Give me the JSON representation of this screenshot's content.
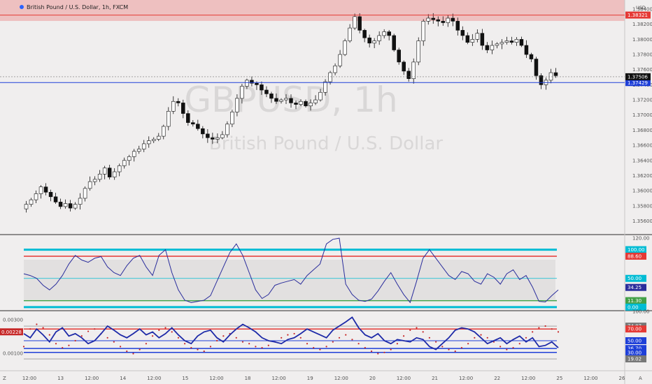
{
  "chart_data": {
    "type": "candlestick",
    "title": "British Pound / U.S. Dollar, 1h, FXCM",
    "watermark_symbol": "GBPUSD, 1h",
    "watermark_name": "British Pound / U.S. Dollar",
    "currency": "USD",
    "price_axis": {
      "ylim": [
        1.3542,
        1.3852
      ],
      "ticks": [
        "1.38400",
        "1.38200",
        "1.38000",
        "1.37800",
        "1.37600",
        "1.37400",
        "1.37200",
        "1.37000",
        "1.36800",
        "1.36600",
        "1.36400",
        "1.36200",
        "1.36000",
        "1.35800",
        "1.35600"
      ]
    },
    "closes": [
      1.3582,
      1.3588,
      1.3596,
      1.3605,
      1.3598,
      1.3592,
      1.3585,
      1.3579,
      1.3583,
      1.3577,
      1.3582,
      1.359,
      1.3603,
      1.3612,
      1.3615,
      1.3622,
      1.363,
      1.3618,
      1.3625,
      1.3633,
      1.364,
      1.3645,
      1.3652,
      1.3655,
      1.3662,
      1.3666,
      1.3668,
      1.3672,
      1.3685,
      1.3705,
      1.3718,
      1.3716,
      1.3702,
      1.369,
      1.3688,
      1.3682,
      1.3675,
      1.367,
      1.3668,
      1.367,
      1.3674,
      1.3688,
      1.3704,
      1.3722,
      1.3738,
      1.3746,
      1.3742,
      1.374,
      1.3733,
      1.3728,
      1.3722,
      1.3718,
      1.372,
      1.3722,
      1.3716,
      1.3714,
      1.3718,
      1.3712,
      1.3716,
      1.372,
      1.373,
      1.3744,
      1.3756,
      1.3765,
      1.378,
      1.3798,
      1.3815,
      1.383,
      1.3812,
      1.3802,
      1.3795,
      1.3798,
      1.3805,
      1.381,
      1.3805,
      1.3786,
      1.377,
      1.3758,
      1.3748,
      1.377,
      1.3798,
      1.3824,
      1.3828,
      1.3826,
      1.3824,
      1.3822,
      1.3828,
      1.3824,
      1.3812,
      1.3805,
      1.3796,
      1.38,
      1.3808,
      1.3792,
      1.3786,
      1.3792,
      1.3794,
      1.3796,
      1.3798,
      1.3796,
      1.38,
      1.3792,
      1.378,
      1.3774,
      1.3752,
      1.374,
      1.3746,
      1.3756,
      1.3752
    ],
    "last_price": "1.37506",
    "price_levels": [
      {
        "label": "1.38321",
        "value": 1.38321,
        "color": "#e53935"
      },
      {
        "label": "1.37429",
        "value": 1.37429,
        "color": "#1e3fd8"
      }
    ],
    "resistance_zone": [
      1.3835,
      1.3852
    ],
    "oscillator_1": {
      "ylim": [
        -5,
        125
      ],
      "ticks": [
        "120.00"
      ],
      "levels": [
        {
          "label": "100.00",
          "value": 100,
          "color": "#00bcd4"
        },
        {
          "label": "88.60",
          "value": 88.6,
          "color": "#e53935"
        },
        {
          "label": "50.00",
          "value": 50,
          "color": "#00bcd4"
        },
        {
          "label": "11.30",
          "value": 11.3,
          "color": "#43a047"
        },
        {
          "label": "0.00",
          "value": 0,
          "color": "#00bcd4"
        }
      ],
      "current": {
        "label": "34.25",
        "value": 34.25
      },
      "values": [
        58,
        55,
        50,
        38,
        30,
        40,
        55,
        75,
        90,
        82,
        78,
        85,
        88,
        70,
        60,
        55,
        72,
        85,
        90,
        70,
        55,
        90,
        100,
        60,
        30,
        12,
        8,
        10,
        12,
        20,
        45,
        70,
        95,
        110,
        90,
        60,
        30,
        15,
        22,
        38,
        42,
        45,
        48,
        40,
        55,
        65,
        75,
        110,
        118,
        120,
        40,
        22,
        12,
        10,
        14,
        28,
        45,
        60,
        40,
        22,
        8,
        45,
        85,
        100,
        85,
        70,
        55,
        48,
        62,
        58,
        45,
        40,
        58,
        52,
        40,
        58,
        65,
        48,
        55,
        35,
        10,
        9,
        20,
        30
      ]
    },
    "oscillator_2": {
      "ylim": [
        0.0,
        0.0035
      ],
      "ticks": [
        "0.00300",
        "0.00100"
      ],
      "current_left": "0.00228",
      "levels": [
        {
          "label": "74.87",
          "value": 74.87,
          "color": "#777777"
        },
        {
          "label": "70.00",
          "value": 70,
          "color": "#e53935"
        },
        {
          "label": "50.00",
          "value": 50,
          "color": "#1e3fd8"
        },
        {
          "label": "36.70",
          "value": 36.7,
          "color": "#1e3fd8"
        },
        {
          "label": "30.00",
          "value": 30,
          "color": "#1e3fd8"
        },
        {
          "label": "19.02",
          "value": 19.02,
          "color": "#777777"
        }
      ],
      "right_ticks": [
        "100.00"
      ],
      "line_values": [
        62,
        55,
        70,
        60,
        48,
        65,
        72,
        58,
        62,
        55,
        45,
        50,
        62,
        75,
        68,
        60,
        55,
        62,
        70,
        60,
        65,
        55,
        62,
        72,
        60,
        50,
        45,
        58,
        65,
        68,
        55,
        48,
        60,
        70,
        78,
        72,
        65,
        55,
        50,
        48,
        45,
        52,
        55,
        62,
        70,
        65,
        60,
        55,
        68,
        75,
        82,
        90,
        72,
        60,
        55,
        62,
        50,
        45,
        52,
        50,
        48,
        55,
        52,
        40,
        35,
        45,
        55,
        68,
        72,
        70,
        65,
        55,
        45,
        50,
        55,
        45,
        52,
        58,
        48,
        55,
        40,
        42,
        48,
        38
      ],
      "dot_values": [
        40,
        70,
        78,
        72,
        60,
        45,
        38,
        42,
        50,
        58,
        66,
        70,
        62,
        55,
        48,
        40,
        32,
        28,
        35,
        45,
        58,
        68,
        72,
        65,
        55,
        45,
        38,
        35,
        32,
        40,
        50,
        58,
        62,
        55,
        48,
        45,
        40,
        38,
        42,
        48,
        55,
        60,
        62,
        55,
        45,
        38,
        35,
        40,
        48,
        55,
        60,
        52,
        45,
        38,
        32,
        28,
        30,
        35,
        45,
        58,
        68,
        72,
        65,
        55,
        48,
        40,
        35,
        32,
        38,
        45,
        55,
        60,
        55,
        48,
        40,
        35,
        38,
        45,
        55,
        65,
        72,
        75,
        70,
        65
      ]
    },
    "time_axis": [
      "12:00",
      "13",
      "12:00",
      "14",
      "12:00",
      "15",
      "12:00",
      "18",
      "12:00",
      "19",
      "12:00",
      "20",
      "12:00",
      "21",
      "12:00",
      "22",
      "12:00",
      "25",
      "12:00",
      "26"
    ],
    "corner_left": "Z",
    "corner_right": "A"
  }
}
